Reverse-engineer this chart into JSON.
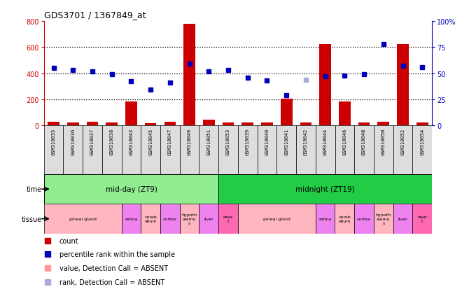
{
  "title": "GDS3701 / 1367849_at",
  "samples": [
    "GSM310035",
    "GSM310036",
    "GSM310037",
    "GSM310038",
    "GSM310043",
    "GSM310045",
    "GSM310047",
    "GSM310049",
    "GSM310051",
    "GSM310053",
    "GSM310039",
    "GSM310040",
    "GSM310041",
    "GSM310042",
    "GSM310044",
    "GSM310046",
    "GSM310048",
    "GSM310050",
    "GSM310052",
    "GSM310054"
  ],
  "count_data": [
    30,
    20,
    25,
    20,
    185,
    15,
    30,
    780,
    45,
    20,
    20,
    20,
    205,
    20,
    625,
    185,
    20,
    30,
    625,
    20
  ],
  "rank_data_pct": [
    55,
    53,
    52,
    49,
    42,
    34,
    41,
    59,
    52,
    53,
    46,
    43,
    29,
    44,
    47,
    48,
    49,
    78,
    57,
    56
  ],
  "absent_indices": [
    13
  ],
  "bar_color": "#CC0000",
  "dot_color": "#0000BB",
  "absent_rank_color": "#AAAADD",
  "absent_bar_color": "#FF9999",
  "bg_color": "#FFFFFF",
  "left_axis_color": "#CC0000",
  "right_axis_color": "#0000BB",
  "plot_bg_color": "#FFFFFF",
  "xtick_bg_color": "#CCCCCC",
  "time_groups": [
    {
      "label": "mid-day (ZT9)",
      "start": 0,
      "end": 9,
      "color": "#90EE90"
    },
    {
      "label": "midnight (ZT19)",
      "start": 9,
      "end": 20,
      "color": "#22CC44"
    }
  ],
  "tissue_groups": [
    {
      "label": "pineal gland",
      "start": 0,
      "end": 4,
      "color": "#FFB6C1"
    },
    {
      "label": "retina",
      "start": 4,
      "end": 5,
      "color": "#EE82EE"
    },
    {
      "label": "cereb\nellum",
      "start": 5,
      "end": 6,
      "color": "#FFB6C1"
    },
    {
      "label": "cortex",
      "start": 6,
      "end": 7,
      "color": "#EE82EE"
    },
    {
      "label": "hypoth\nalamu\ns",
      "start": 7,
      "end": 8,
      "color": "#FFB6C1"
    },
    {
      "label": "liver",
      "start": 8,
      "end": 9,
      "color": "#EE82EE"
    },
    {
      "label": "hear\nt",
      "start": 9,
      "end": 10,
      "color": "#FF69B4"
    },
    {
      "label": "pineal gland",
      "start": 10,
      "end": 14,
      "color": "#FFB6C1"
    },
    {
      "label": "retina",
      "start": 14,
      "end": 15,
      "color": "#EE82EE"
    },
    {
      "label": "cereb\nellum",
      "start": 15,
      "end": 16,
      "color": "#FFB6C1"
    },
    {
      "label": "cortex",
      "start": 16,
      "end": 17,
      "color": "#EE82EE"
    },
    {
      "label": "hypoth\nalamu\ns",
      "start": 17,
      "end": 18,
      "color": "#FFB6C1"
    },
    {
      "label": "liver",
      "start": 18,
      "end": 19,
      "color": "#EE82EE"
    },
    {
      "label": "hear\nt",
      "start": 19,
      "end": 20,
      "color": "#FF69B4"
    }
  ],
  "legend_items": [
    {
      "color": "#CC0000",
      "label": "count"
    },
    {
      "color": "#0000BB",
      "label": "percentile rank within the sample"
    },
    {
      "color": "#FF9999",
      "label": "value, Detection Call = ABSENT"
    },
    {
      "color": "#AAAADD",
      "label": "rank, Detection Call = ABSENT"
    }
  ]
}
